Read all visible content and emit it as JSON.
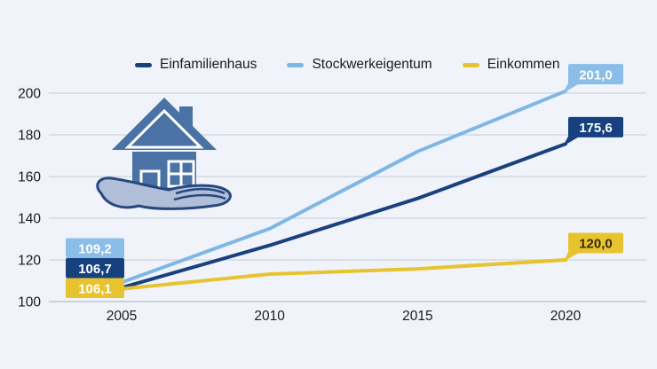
{
  "page": {
    "background": "#f0f4fa"
  },
  "legend": {
    "items": [
      {
        "label": "Einfamilienhaus",
        "color": "#1a4080"
      },
      {
        "label": "Stockwerkeigentum",
        "color": "#7fb6e4"
      },
      {
        "label": "Einkommen",
        "color": "#e8c330"
      }
    ]
  },
  "chart_data": {
    "type": "line",
    "x": [
      2005,
      2010,
      2015,
      2020
    ],
    "xticks": [
      "2005",
      "2010",
      "2015",
      "2020"
    ],
    "yticks": [
      100,
      120,
      140,
      160,
      180,
      200
    ],
    "ylim": [
      100,
      205
    ],
    "grid": true,
    "legend_position": "top",
    "series": [
      {
        "name": "Einfamilienhaus",
        "color": "#1a4080",
        "values": [
          106.7,
          127.0,
          149.5,
          175.6
        ],
        "start_label": {
          "text": "106,7",
          "bg": "#16407e",
          "fg": "#ffffff"
        },
        "end_label": {
          "text": "175,6",
          "bg": "#16407e",
          "fg": "#ffffff"
        }
      },
      {
        "name": "Stockwerkeigentum",
        "color": "#7fb6e4",
        "values": [
          109.2,
          135.0,
          172.0,
          201.0
        ],
        "start_label": {
          "text": "109,2",
          "bg": "#8abde7",
          "fg": "#ffffff"
        },
        "end_label": {
          "text": "201,0",
          "bg": "#8abde7",
          "fg": "#ffffff"
        }
      },
      {
        "name": "Einkommen",
        "color": "#e8c330",
        "values": [
          106.1,
          113.2,
          115.7,
          120.0
        ],
        "start_label": {
          "text": "106,1",
          "bg": "#e8c330",
          "fg": "#ffffff"
        },
        "end_label": {
          "text": "120,0",
          "bg": "#e8c330",
          "fg": "#332d05"
        }
      }
    ]
  },
  "icon": {
    "name": "hand-holding-house",
    "house_color": "#4a72a4",
    "hand_color": "#b0bed9",
    "outline_color": "#27487e"
  }
}
